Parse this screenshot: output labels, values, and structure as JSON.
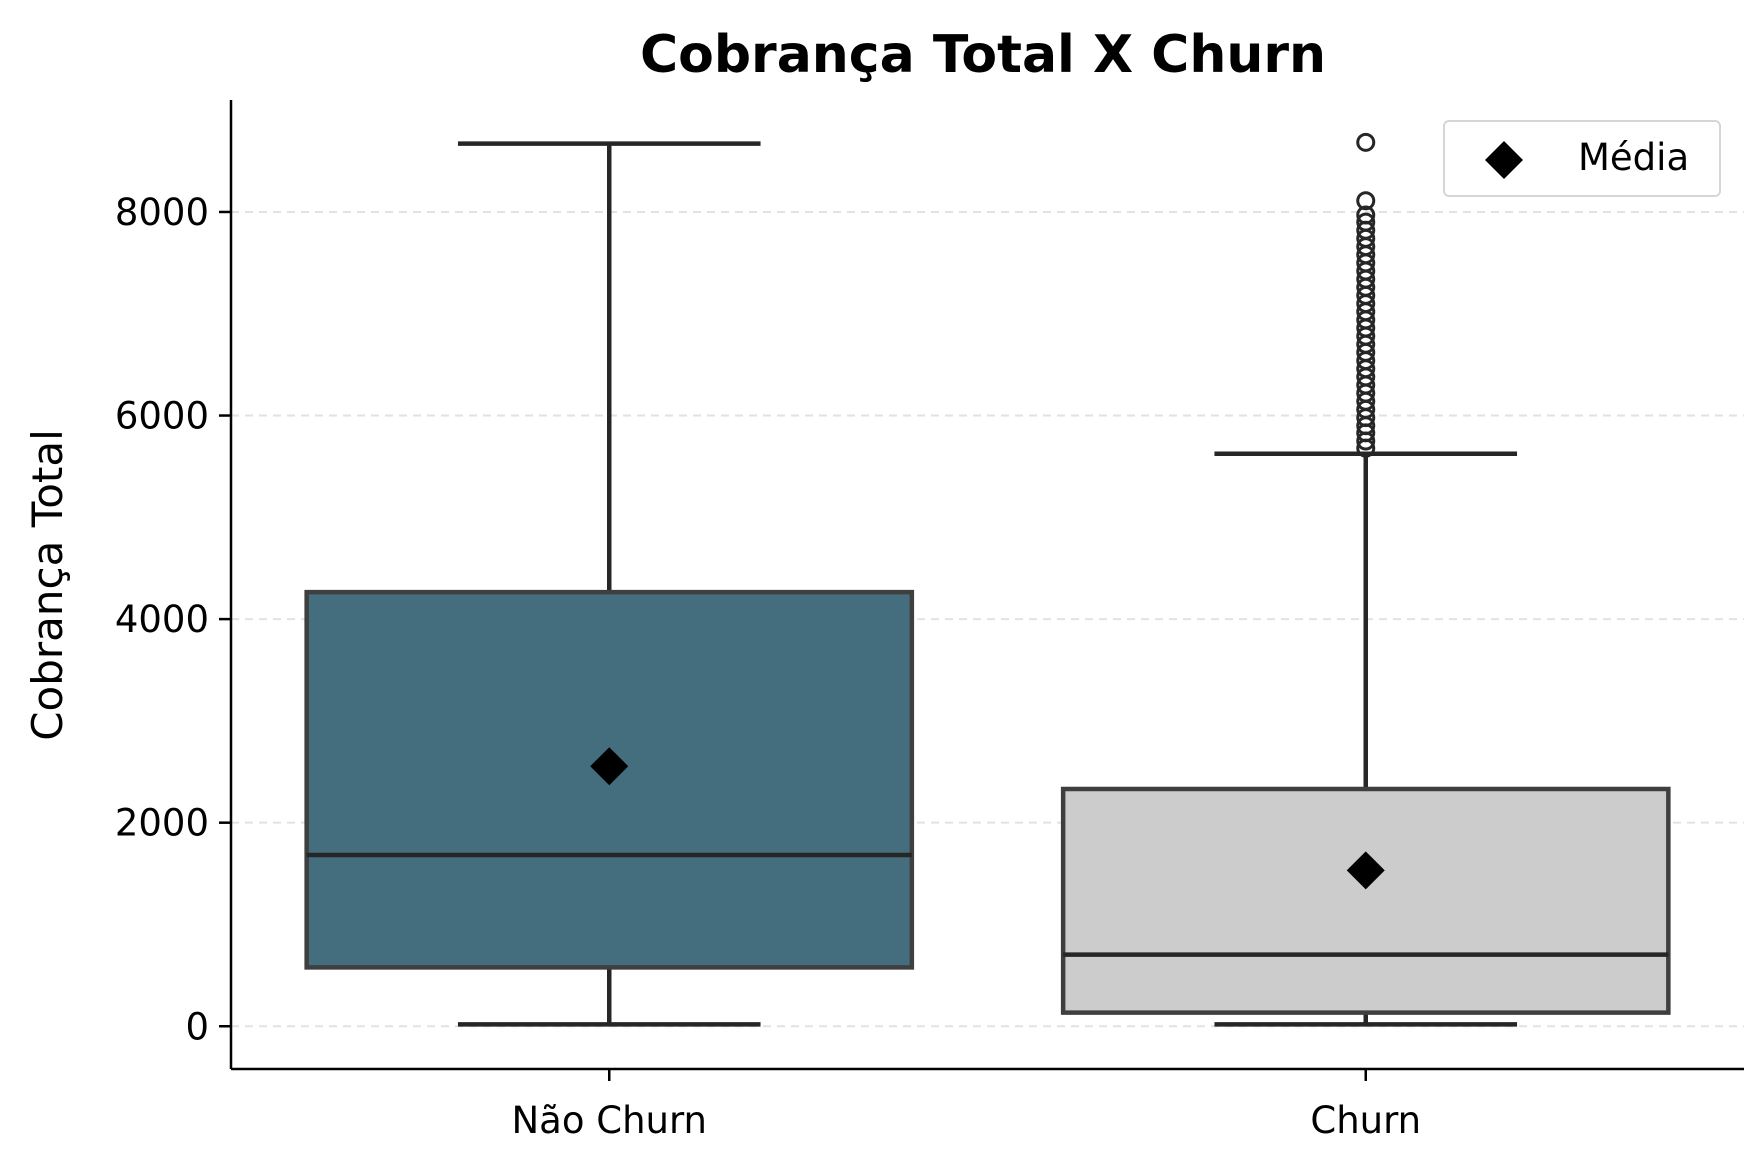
{
  "chart_data": {
    "type": "box",
    "title": "Cobrança Total X Churn",
    "xlabel": "",
    "ylabel": "Cobrança Total",
    "ylim": [
      -420,
      9100
    ],
    "yticks": [
      0,
      2000,
      4000,
      6000,
      8000
    ],
    "grid": "horizontal-dashed",
    "legend": {
      "placement": "top-right",
      "entries": [
        {
          "label": "Média",
          "marker": "diamond",
          "color": "#000000"
        }
      ]
    },
    "categories": [
      "Não Churn",
      "Churn"
    ],
    "colors": [
      "#446e7e",
      "#cccccc"
    ],
    "boxes": [
      {
        "category": "Não Churn",
        "whisker_low": 19,
        "q1": 578,
        "median": 1683,
        "q3": 4265,
        "whisker_high": 8672,
        "mean": 2555,
        "outliers": []
      },
      {
        "category": "Churn",
        "whisker_low": 19,
        "q1": 134,
        "median": 704,
        "q3": 2331,
        "whisker_high": 5624,
        "mean": 1532,
        "outliers": [
          5680,
          5750,
          5830,
          5900,
          5980,
          6060,
          6140,
          6220,
          6300,
          6380,
          6460,
          6540,
          6620,
          6700,
          6780,
          6860,
          6940,
          7020,
          7100,
          7180,
          7260,
          7340,
          7420,
          7500,
          7580,
          7660,
          7740,
          7820,
          7900,
          7970,
          8110,
          8684
        ]
      }
    ]
  }
}
